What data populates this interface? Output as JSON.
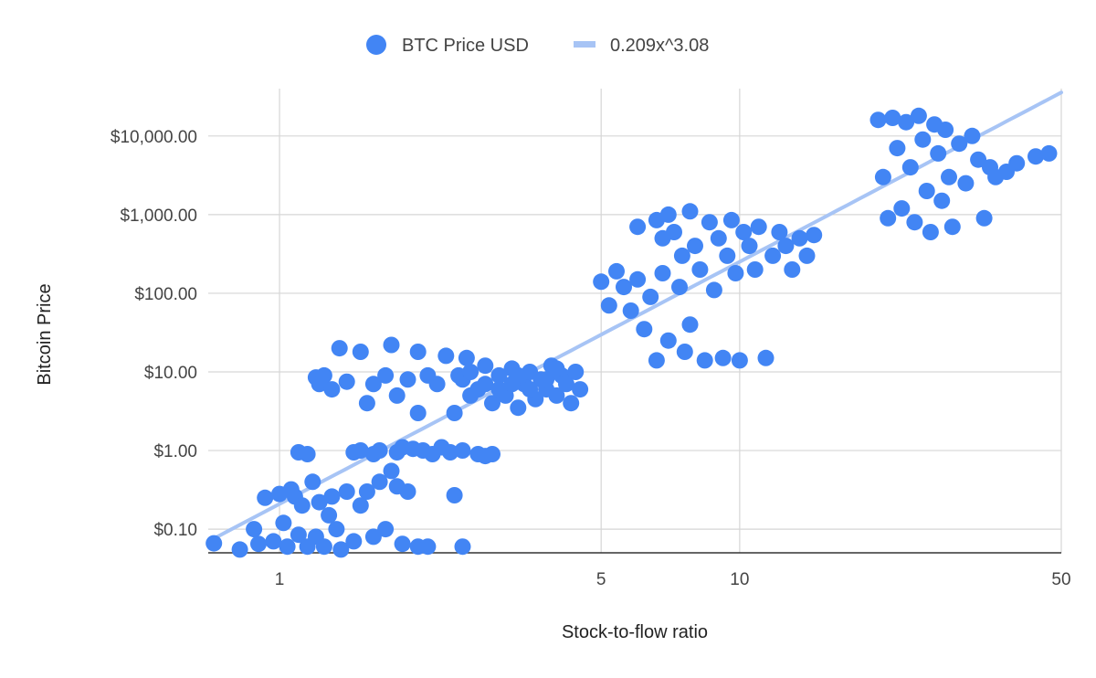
{
  "chart_data": {
    "type": "scatter",
    "xlabel": "Stock-to-flow ratio",
    "ylabel": "Bitcoin Price",
    "x_scale": "log",
    "y_scale": "log",
    "xlim": [
      0.7,
      50
    ],
    "ylim": [
      0.05,
      40000
    ],
    "x_ticks": [
      {
        "value": 1,
        "label": "1"
      },
      {
        "value": 5,
        "label": "5"
      },
      {
        "value": 10,
        "label": "10"
      },
      {
        "value": 50,
        "label": "50"
      }
    ],
    "y_ticks": [
      {
        "value": 0.1,
        "label": "$0.10"
      },
      {
        "value": 1,
        "label": "$1.00"
      },
      {
        "value": 10,
        "label": "$10.00"
      },
      {
        "value": 100,
        "label": "$100.00"
      },
      {
        "value": 1000,
        "label": "$1,000.00"
      },
      {
        "value": 10000,
        "label": "$10,000.00"
      }
    ],
    "grid": true,
    "legend_position": "top",
    "series": [
      {
        "name": "BTC Price USD",
        "kind": "points",
        "color": "#4285f4",
        "points": [
          [
            0.72,
            0.066
          ],
          [
            0.82,
            0.055
          ],
          [
            0.88,
            0.1
          ],
          [
            0.9,
            0.065
          ],
          [
            0.93,
            0.25
          ],
          [
            0.97,
            0.07
          ],
          [
            1.0,
            0.28
          ],
          [
            1.02,
            0.12
          ],
          [
            1.04,
            0.06
          ],
          [
            1.06,
            0.32
          ],
          [
            1.08,
            0.26
          ],
          [
            1.1,
            0.085
          ],
          [
            1.12,
            0.2
          ],
          [
            1.15,
            0.06
          ],
          [
            1.18,
            0.4
          ],
          [
            1.2,
            0.08
          ],
          [
            1.22,
            0.22
          ],
          [
            1.25,
            0.06
          ],
          [
            1.28,
            0.15
          ],
          [
            1.3,
            0.26
          ],
          [
            1.33,
            0.1
          ],
          [
            1.36,
            0.055
          ],
          [
            1.4,
            0.3
          ],
          [
            1.45,
            0.07
          ],
          [
            1.5,
            0.2
          ],
          [
            1.55,
            0.3
          ],
          [
            1.6,
            0.08
          ],
          [
            1.65,
            0.4
          ],
          [
            1.7,
            0.1
          ],
          [
            1.75,
            0.55
          ],
          [
            1.8,
            0.35
          ],
          [
            1.85,
            0.065
          ],
          [
            1.9,
            0.3
          ],
          [
            2.0,
            0.06
          ],
          [
            2.1,
            0.06
          ],
          [
            2.4,
            0.27
          ],
          [
            2.5,
            0.06
          ],
          [
            1.1,
            0.95
          ],
          [
            1.15,
            0.9
          ],
          [
            1.2,
            8.5
          ],
          [
            1.22,
            7.0
          ],
          [
            1.25,
            9.0
          ],
          [
            1.3,
            6.0
          ],
          [
            1.35,
            20
          ],
          [
            1.4,
            7.5
          ],
          [
            1.45,
            0.95
          ],
          [
            1.5,
            1.0
          ],
          [
            1.5,
            18
          ],
          [
            1.55,
            4.0
          ],
          [
            1.6,
            0.9
          ],
          [
            1.6,
            7.0
          ],
          [
            1.65,
            1.0
          ],
          [
            1.7,
            9.0
          ],
          [
            1.75,
            22
          ],
          [
            1.8,
            0.95
          ],
          [
            1.8,
            5.0
          ],
          [
            1.85,
            1.1
          ],
          [
            1.9,
            8.0
          ],
          [
            1.95,
            1.05
          ],
          [
            2.0,
            18
          ],
          [
            2.0,
            3.0
          ],
          [
            2.05,
            1.0
          ],
          [
            2.1,
            9.0
          ],
          [
            2.15,
            0.9
          ],
          [
            2.2,
            7.0
          ],
          [
            2.25,
            1.1
          ],
          [
            2.3,
            16
          ],
          [
            2.35,
            0.95
          ],
          [
            2.4,
            3.0
          ],
          [
            2.45,
            9.0
          ],
          [
            2.5,
            1.0
          ],
          [
            2.55,
            15
          ],
          [
            2.6,
            5.0
          ],
          [
            2.7,
            0.9
          ],
          [
            2.8,
            0.85
          ],
          [
            2.9,
            0.9
          ],
          [
            2.5,
            8
          ],
          [
            2.6,
            10
          ],
          [
            2.7,
            6
          ],
          [
            2.8,
            12
          ],
          [
            2.9,
            4
          ],
          [
            3.0,
            9
          ],
          [
            3.1,
            5
          ],
          [
            3.2,
            11
          ],
          [
            3.3,
            3.5
          ],
          [
            3.4,
            7
          ],
          [
            3.5,
            10
          ],
          [
            3.6,
            4.5
          ],
          [
            3.7,
            8
          ],
          [
            3.8,
            6
          ],
          [
            3.9,
            12
          ],
          [
            4.0,
            5
          ],
          [
            4.1,
            9
          ],
          [
            4.2,
            7
          ],
          [
            4.3,
            4
          ],
          [
            4.4,
            10
          ],
          [
            4.5,
            6
          ],
          [
            3.2,
            7
          ],
          [
            3.5,
            6
          ],
          [
            3.8,
            8
          ],
          [
            2.8,
            7
          ],
          [
            3.0,
            6
          ],
          [
            4.0,
            11
          ],
          [
            3.3,
            9
          ],
          [
            5.0,
            140
          ],
          [
            5.2,
            70
          ],
          [
            5.4,
            190
          ],
          [
            5.6,
            120
          ],
          [
            5.8,
            60
          ],
          [
            6.0,
            700
          ],
          [
            6.0,
            150
          ],
          [
            6.2,
            35
          ],
          [
            6.4,
            90
          ],
          [
            6.6,
            850
          ],
          [
            6.6,
            14
          ],
          [
            6.8,
            500
          ],
          [
            6.8,
            180
          ],
          [
            7.0,
            25
          ],
          [
            7.0,
            1000
          ],
          [
            7.2,
            600
          ],
          [
            7.4,
            120
          ],
          [
            7.5,
            300
          ],
          [
            7.6,
            18
          ],
          [
            7.8,
            1100
          ],
          [
            7.8,
            40
          ],
          [
            8.0,
            400
          ],
          [
            8.2,
            200
          ],
          [
            8.4,
            14
          ],
          [
            8.6,
            800
          ],
          [
            8.8,
            110
          ],
          [
            9.0,
            500
          ],
          [
            9.2,
            15
          ],
          [
            9.4,
            300
          ],
          [
            9.6,
            850
          ],
          [
            9.8,
            180
          ],
          [
            10.0,
            14
          ],
          [
            10.2,
            600
          ],
          [
            10.5,
            400
          ],
          [
            10.8,
            200
          ],
          [
            11.0,
            700
          ],
          [
            11.4,
            15
          ],
          [
            11.8,
            300
          ],
          [
            12.2,
            600
          ],
          [
            12.6,
            400
          ],
          [
            13.0,
            200
          ],
          [
            13.5,
            500
          ],
          [
            14.0,
            300
          ],
          [
            14.5,
            550
          ],
          [
            20,
            16000
          ],
          [
            20.5,
            3000
          ],
          [
            21,
            900
          ],
          [
            21.5,
            17000
          ],
          [
            22,
            7000
          ],
          [
            22.5,
            1200
          ],
          [
            23,
            15000
          ],
          [
            23.5,
            4000
          ],
          [
            24,
            800
          ],
          [
            24.5,
            18000
          ],
          [
            25,
            9000
          ],
          [
            25.5,
            2000
          ],
          [
            26,
            600
          ],
          [
            26.5,
            14000
          ],
          [
            27,
            6000
          ],
          [
            27.5,
            1500
          ],
          [
            28,
            12000
          ],
          [
            28.5,
            3000
          ],
          [
            29,
            700
          ],
          [
            30,
            8000
          ],
          [
            31,
            2500
          ],
          [
            32,
            10000
          ],
          [
            33,
            5000
          ],
          [
            34,
            900
          ],
          [
            35,
            4000
          ],
          [
            36,
            3000
          ],
          [
            38,
            3500
          ],
          [
            40,
            4500
          ],
          [
            44,
            5500
          ],
          [
            47,
            6000
          ]
        ]
      },
      {
        "name": "0.209x^3.08",
        "kind": "trendline",
        "color": "#a7c4f5",
        "coefficient": 0.209,
        "exponent": 3.08
      }
    ]
  }
}
